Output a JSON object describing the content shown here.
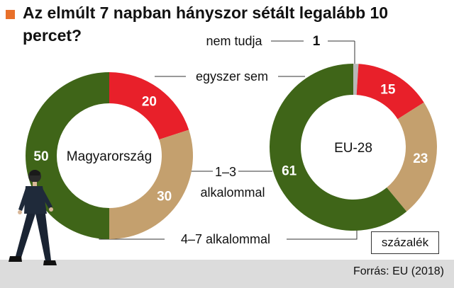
{
  "title": "Az elmúlt 7 napban hányszor sétált legalább 10 percet?",
  "unit": "százalék",
  "source": "Forrás: EU (2018)",
  "colors": {
    "accent": "#e8702a",
    "nem_tudja": "#b8b8b8",
    "egyszer_sem": "#e8202a",
    "egy_harom": "#c4a06e",
    "negy_het": "#3f6518"
  },
  "chart_data": {
    "type": "pie",
    "legend": [
      {
        "key": "nem_tudja",
        "label": "nem tudja",
        "color": "#b8b8b8"
      },
      {
        "key": "egyszer_sem",
        "label": "egyszer sem",
        "color": "#e8202a"
      },
      {
        "key": "egy_harom",
        "label": "1–3 alkalommal",
        "color": "#c4a06e"
      },
      {
        "key": "negy_het",
        "label": "4–7  alkalommal",
        "color": "#3f6518"
      }
    ],
    "charts": [
      {
        "name": "Magyarország",
        "slices": [
          {
            "key": "egyszer_sem",
            "value": 20
          },
          {
            "key": "egy_harom",
            "value": 30
          },
          {
            "key": "negy_het",
            "value": 50
          }
        ]
      },
      {
        "name": "EU-28",
        "slices": [
          {
            "key": "nem_tudja",
            "value": 1
          },
          {
            "key": "egyszer_sem",
            "value": 15
          },
          {
            "key": "egy_harom",
            "value": 23
          },
          {
            "key": "negy_het",
            "value": 61
          }
        ]
      }
    ]
  }
}
